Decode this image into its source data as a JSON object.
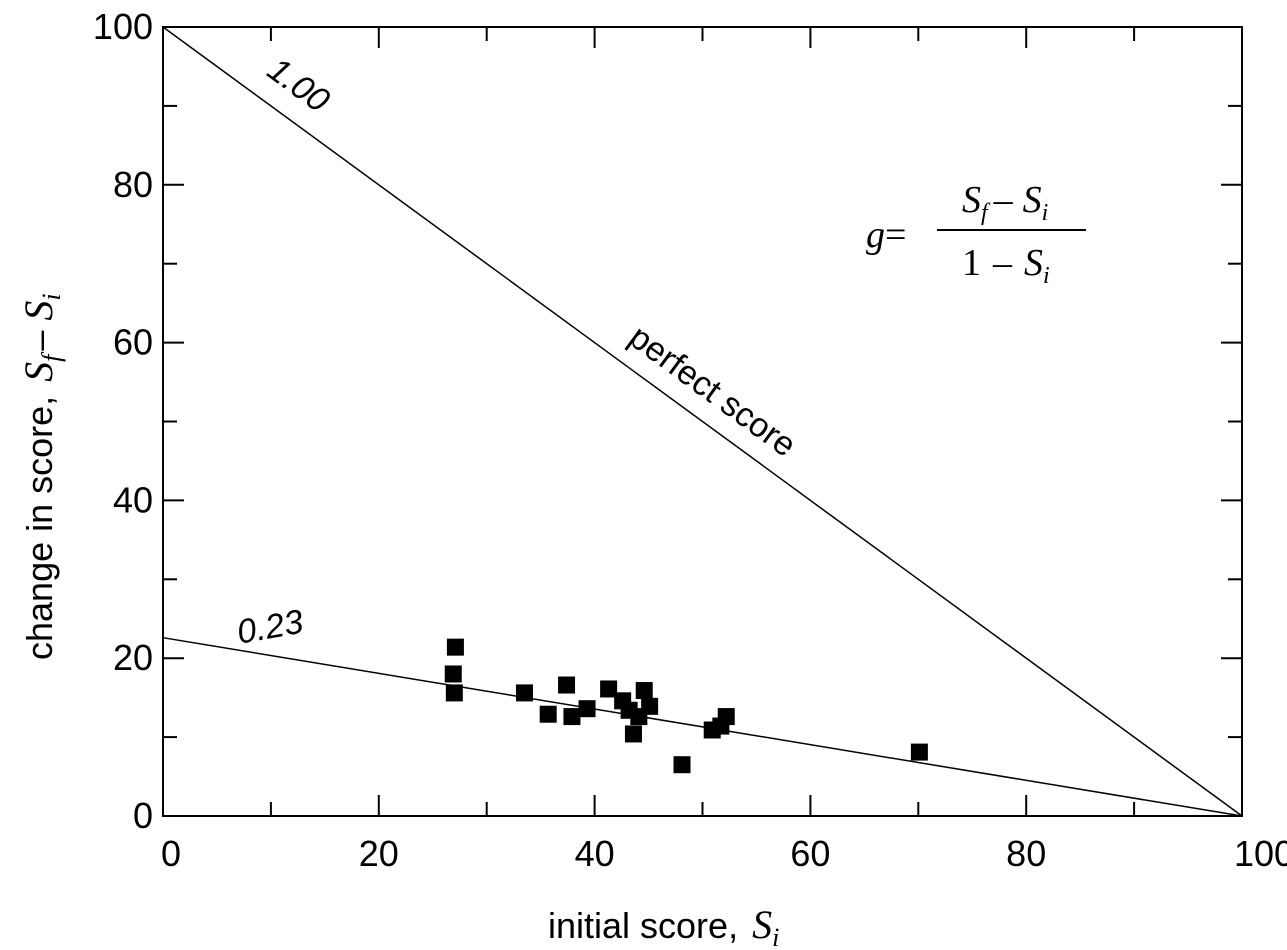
{
  "chart_data": {
    "type": "scatter",
    "title": "",
    "xlabel": "initial score,",
    "xlabel_symbol": "S",
    "xlabel_symbol_sub": "i",
    "ylabel": "change in score,",
    "ylabel_symbol": "S",
    "ylabel_symbol_sub_f": "f",
    "ylabel_symbol_sub_i": "i",
    "xlim": [
      0,
      100
    ],
    "ylim": [
      0,
      100
    ],
    "x_ticks": [
      "0",
      "20",
      "40",
      "60",
      "80",
      "100"
    ],
    "y_ticks": [
      "0",
      "20",
      "40",
      "60",
      "80",
      "100"
    ],
    "grid": false,
    "points": [
      {
        "x": 27.1,
        "y": 21.4
      },
      {
        "x": 26.9,
        "y": 18.0
      },
      {
        "x": 27.0,
        "y": 15.6
      },
      {
        "x": 33.5,
        "y": 15.6
      },
      {
        "x": 35.7,
        "y": 12.9
      },
      {
        "x": 37.4,
        "y": 16.6
      },
      {
        "x": 37.9,
        "y": 12.6
      },
      {
        "x": 39.3,
        "y": 13.6
      },
      {
        "x": 41.3,
        "y": 16.1
      },
      {
        "x": 42.6,
        "y": 14.6
      },
      {
        "x": 43.2,
        "y": 13.4
      },
      {
        "x": 43.6,
        "y": 10.4
      },
      {
        "x": 44.1,
        "y": 12.6
      },
      {
        "x": 44.6,
        "y": 15.9
      },
      {
        "x": 45.1,
        "y": 13.9
      },
      {
        "x": 48.1,
        "y": 6.5
      },
      {
        "x": 50.9,
        "y": 10.9
      },
      {
        "x": 51.7,
        "y": 11.4
      },
      {
        "x": 52.2,
        "y": 12.6
      },
      {
        "x": 70.1,
        "y": 8.1
      }
    ],
    "lines": [
      {
        "label": "1.00",
        "annotation": "perfect score",
        "x": [
          0,
          100
        ],
        "y": [
          100,
          0
        ]
      },
      {
        "label": "0.23",
        "x": [
          0,
          100
        ],
        "y": [
          22.6,
          0
        ]
      }
    ],
    "formula": {
      "lhs": "g",
      "equals": "=",
      "numerator_a": "S",
      "numerator_a_sub": "f",
      "minus": "–",
      "numerator_b": "S",
      "numerator_b_sub": "i",
      "denominator_one": "1",
      "denominator_minus": "–",
      "denominator_s": "S",
      "denominator_s_sub": "i"
    }
  }
}
